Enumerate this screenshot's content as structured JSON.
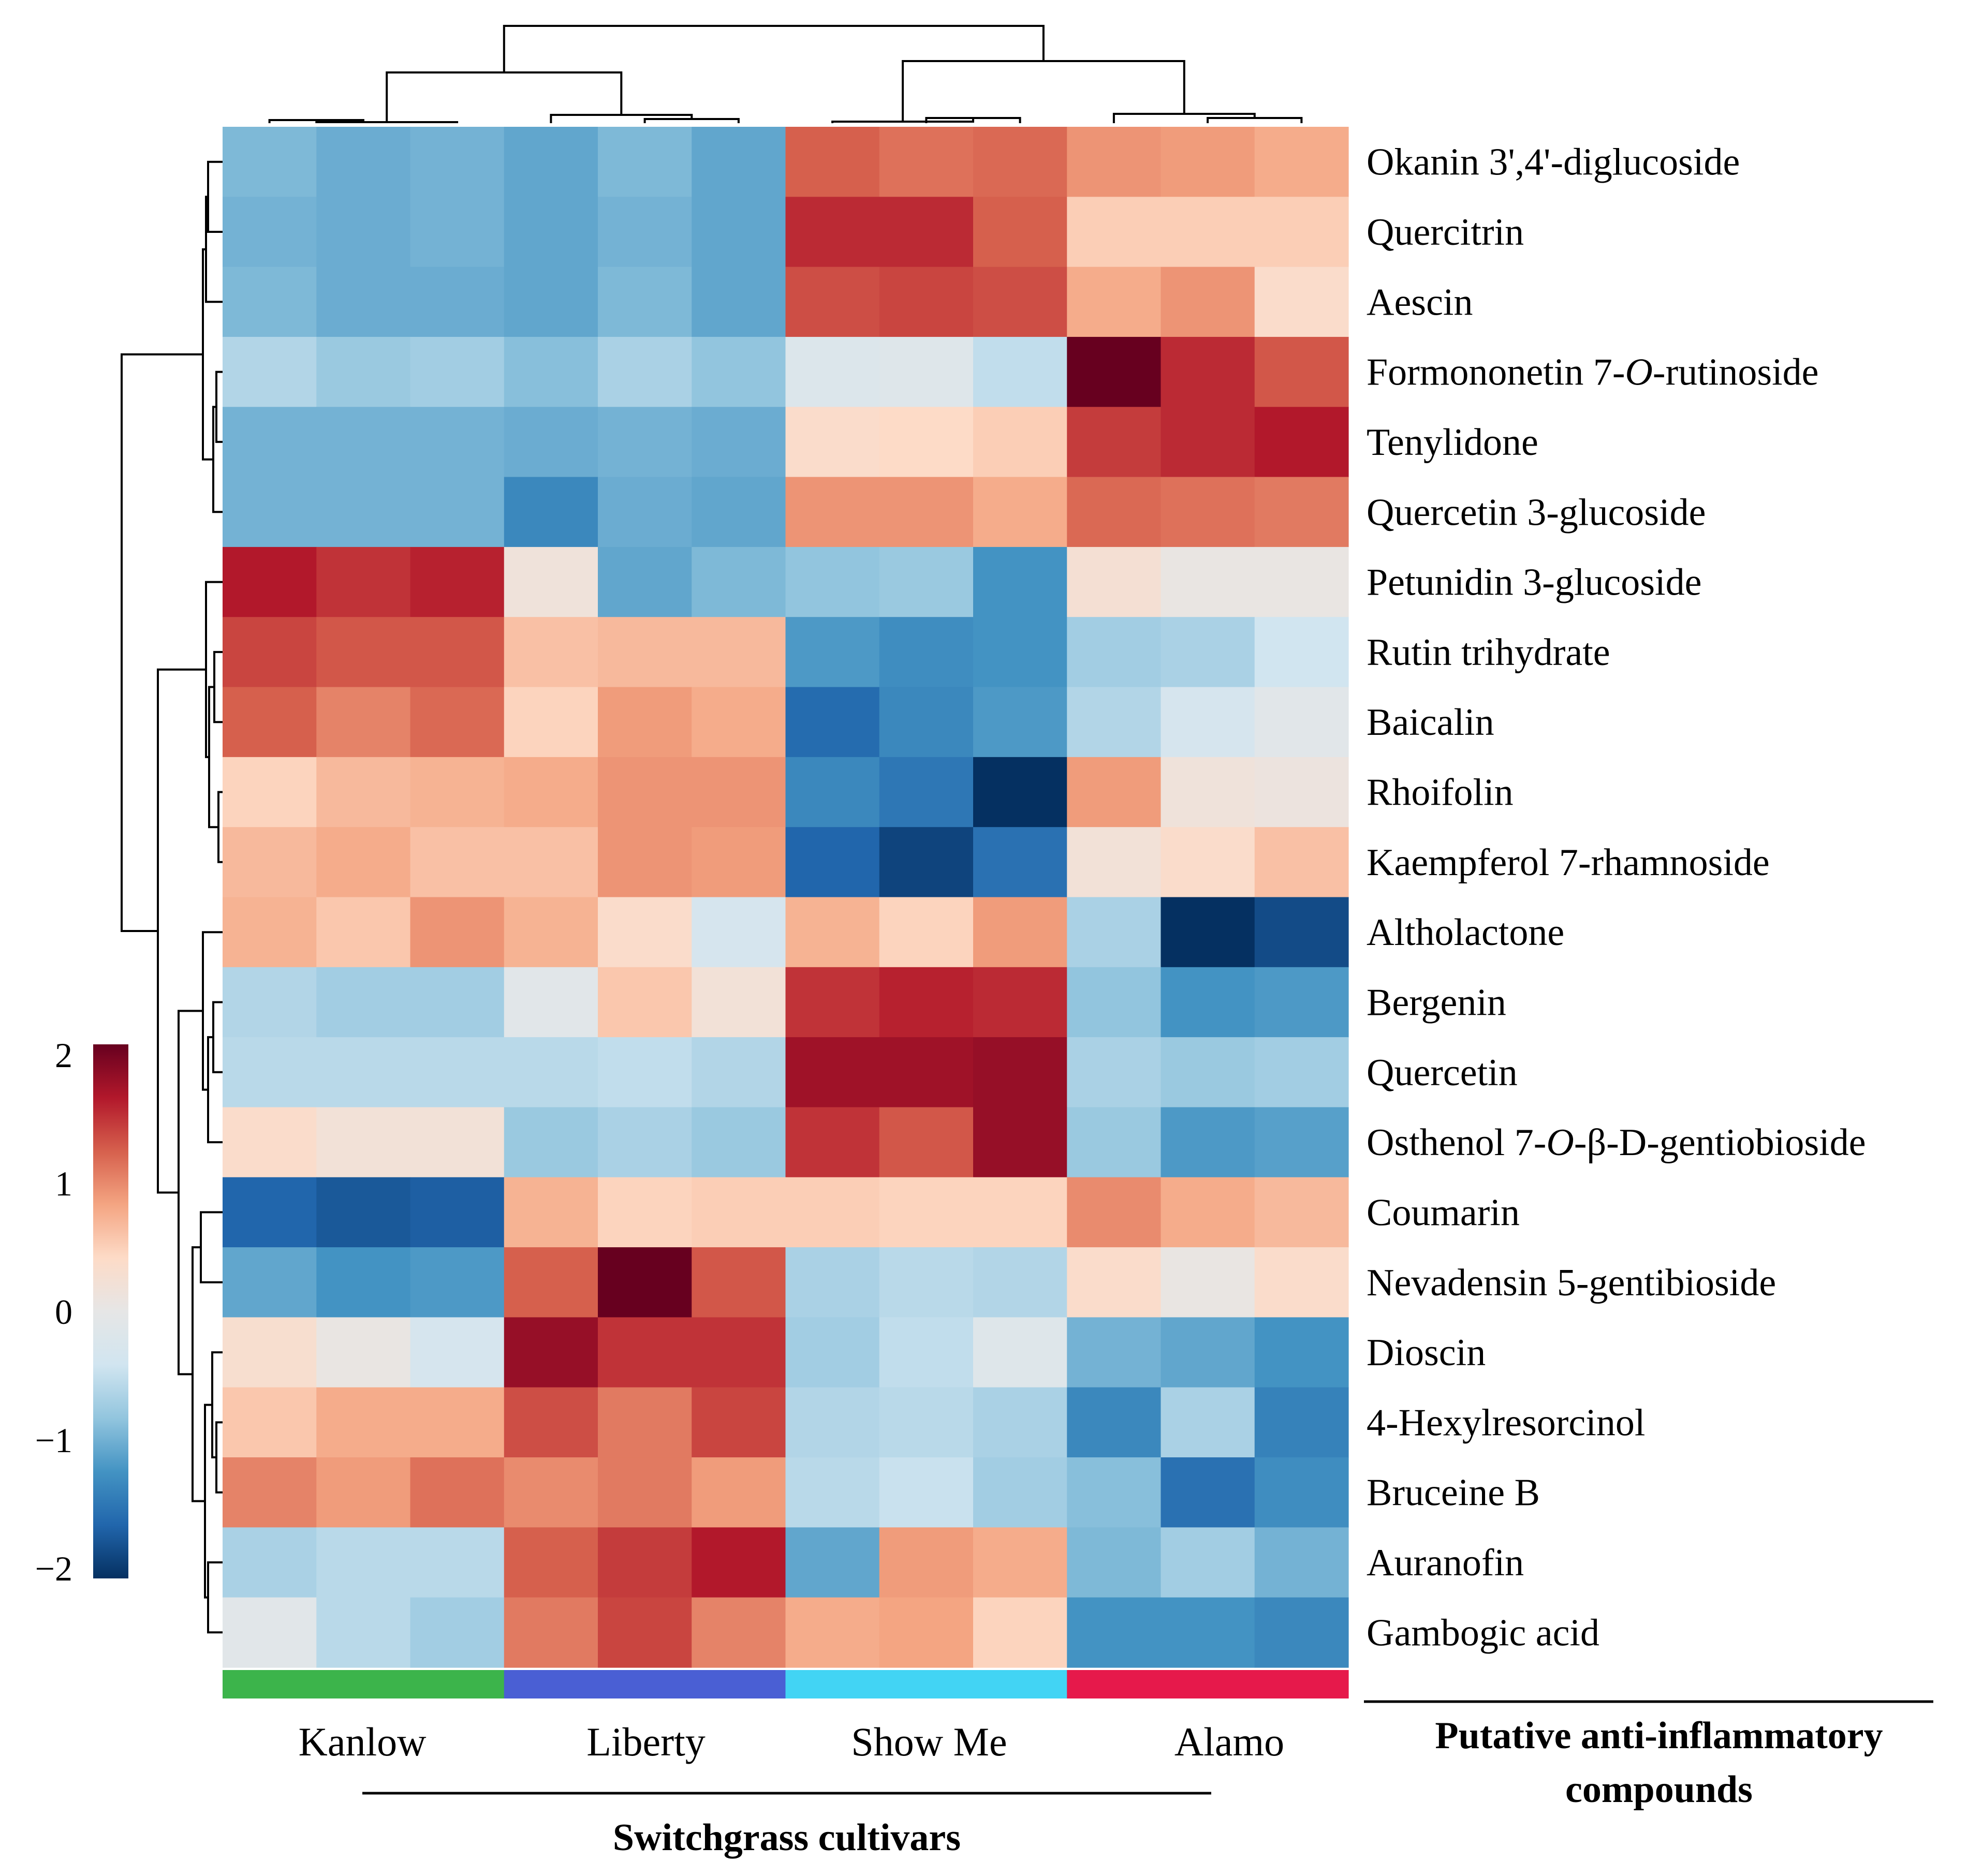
{
  "chart_data": {
    "type": "heatmap",
    "title": "",
    "xlabel": "Switchgrass cultivars",
    "ylabel": "Putative anti-inflammatory compounds",
    "color_scale": {
      "min": -2,
      "max": 2,
      "ticks": [
        "2",
        "1",
        "0",
        "−1",
        "−2"
      ],
      "colors": [
        "#053061",
        "#2166ac",
        "#4393c3",
        "#92c5de",
        "#d1e5f0",
        "#e6e6e6",
        "#fddbc7",
        "#f4a582",
        "#d6604d",
        "#b2182b",
        "#67001f"
      ]
    },
    "groups": [
      {
        "name": "Kanlow",
        "color": "#3cb44b",
        "samples": 3
      },
      {
        "name": "Liberty",
        "color": "#4a5fd4",
        "samples": 3
      },
      {
        "name": "Show Me",
        "color": "#42d4f4",
        "samples": 3
      },
      {
        "name": "Alamo",
        "color": "#e6194b",
        "samples": 3
      }
    ],
    "rows": [
      "Okanin 3',4'-diglucoside",
      "Quercitrin",
      "Aescin",
      "Formononetin 7-O-rutinoside",
      "Tenylidone",
      "Quercetin 3-glucoside",
      "Petunidin 3-glucoside",
      "Rutin trihydrate",
      "Baicalin",
      "Rhoifolin",
      "Kaempferol 7-rhamnoside",
      "Altholactone",
      "Bergenin",
      "Quercetin",
      "Osthenol 7-O-β-D-gentiobioside",
      "Coumarin",
      "Nevadensin 5-gentibioside",
      "Dioscin",
      "4-Hexylresorcinol",
      "Bruceine B",
      "Auranofin",
      "Gambogic acid"
    ],
    "values": [
      [
        -0.9,
        -1.0,
        -0.95,
        -1.05,
        -0.9,
        -1.05,
        1.2,
        1.1,
        1.15,
        0.9,
        0.85,
        0.75
      ],
      [
        -0.95,
        -1.0,
        -0.95,
        -1.05,
        -0.95,
        -1.05,
        1.5,
        1.5,
        1.2,
        0.5,
        0.5,
        0.5
      ],
      [
        -0.9,
        -1.0,
        -1.0,
        -1.05,
        -0.9,
        -1.05,
        1.3,
        1.35,
        1.3,
        0.75,
        0.9,
        0.35
      ],
      [
        -0.6,
        -0.75,
        -0.7,
        -0.85,
        -0.65,
        -0.8,
        -0.2,
        -0.15,
        -0.5,
        2.1,
        1.5,
        1.25
      ],
      [
        -0.95,
        -0.95,
        -0.95,
        -1.0,
        -0.95,
        -1.0,
        0.35,
        0.4,
        0.5,
        1.4,
        1.5,
        1.6
      ],
      [
        -0.95,
        -0.95,
        -0.95,
        -1.3,
        -1.0,
        -1.05,
        0.9,
        0.9,
        0.75,
        1.15,
        1.1,
        1.05
      ],
      [
        1.6,
        1.45,
        1.55,
        0.15,
        -1.05,
        -0.9,
        -0.8,
        -0.75,
        -1.2,
        0.25,
        0.05,
        0.05
      ],
      [
        1.35,
        1.25,
        1.25,
        0.6,
        0.65,
        0.65,
        -1.15,
        -1.25,
        -1.2,
        -0.7,
        -0.65,
        -0.4
      ],
      [
        1.2,
        1.0,
        1.15,
        0.45,
        0.85,
        0.75,
        -1.55,
        -1.3,
        -1.15,
        -0.6,
        -0.3,
        -0.1
      ],
      [
        0.45,
        0.65,
        0.7,
        0.75,
        0.9,
        0.9,
        -1.3,
        -1.45,
        -2.0,
        0.85,
        0.15,
        0.1
      ],
      [
        0.65,
        0.75,
        0.6,
        0.6,
        0.9,
        0.85,
        -1.6,
        -1.85,
        -1.5,
        0.2,
        0.35,
        0.6
      ],
      [
        0.7,
        0.55,
        0.9,
        0.7,
        0.35,
        -0.3,
        0.7,
        0.45,
        0.85,
        -0.65,
        -2.3,
        -1.8
      ],
      [
        -0.6,
        -0.7,
        -0.7,
        -0.1,
        0.55,
        0.2,
        1.45,
        1.55,
        1.5,
        -0.8,
        -1.2,
        -1.15
      ],
      [
        -0.55,
        -0.55,
        -0.55,
        -0.55,
        -0.5,
        -0.6,
        1.7,
        1.7,
        1.75,
        -0.65,
        -0.75,
        -0.7
      ],
      [
        0.35,
        0.2,
        0.2,
        -0.75,
        -0.65,
        -0.75,
        1.45,
        1.25,
        1.75,
        -0.75,
        -1.15,
        -1.1
      ],
      [
        -1.6,
        -1.7,
        -1.65,
        0.7,
        0.45,
        0.5,
        0.5,
        0.45,
        0.45,
        0.95,
        0.75,
        0.65
      ],
      [
        -1.05,
        -1.2,
        -1.15,
        1.2,
        2.0,
        1.25,
        -0.65,
        -0.55,
        -0.6,
        0.35,
        0.05,
        0.35
      ],
      [
        0.3,
        0.05,
        -0.3,
        1.75,
        1.45,
        1.45,
        -0.7,
        -0.5,
        -0.15,
        -0.95,
        -1.05,
        -1.2
      ],
      [
        0.55,
        0.75,
        0.75,
        1.3,
        1.05,
        1.35,
        -0.6,
        -0.55,
        -0.65,
        -1.3,
        -0.65,
        -1.35
      ],
      [
        1.0,
        0.85,
        1.1,
        0.95,
        1.05,
        0.85,
        -0.55,
        -0.45,
        -0.7,
        -0.85,
        -1.5,
        -1.25
      ],
      [
        -0.65,
        -0.55,
        -0.55,
        1.2,
        1.4,
        1.6,
        -1.05,
        0.85,
        0.75,
        -0.9,
        -0.7,
        -0.95
      ],
      [
        -0.1,
        -0.55,
        -0.7,
        1.05,
        1.35,
        1.0,
        0.75,
        0.8,
        0.45,
        -1.2,
        -1.2,
        -1.3
      ]
    ]
  }
}
